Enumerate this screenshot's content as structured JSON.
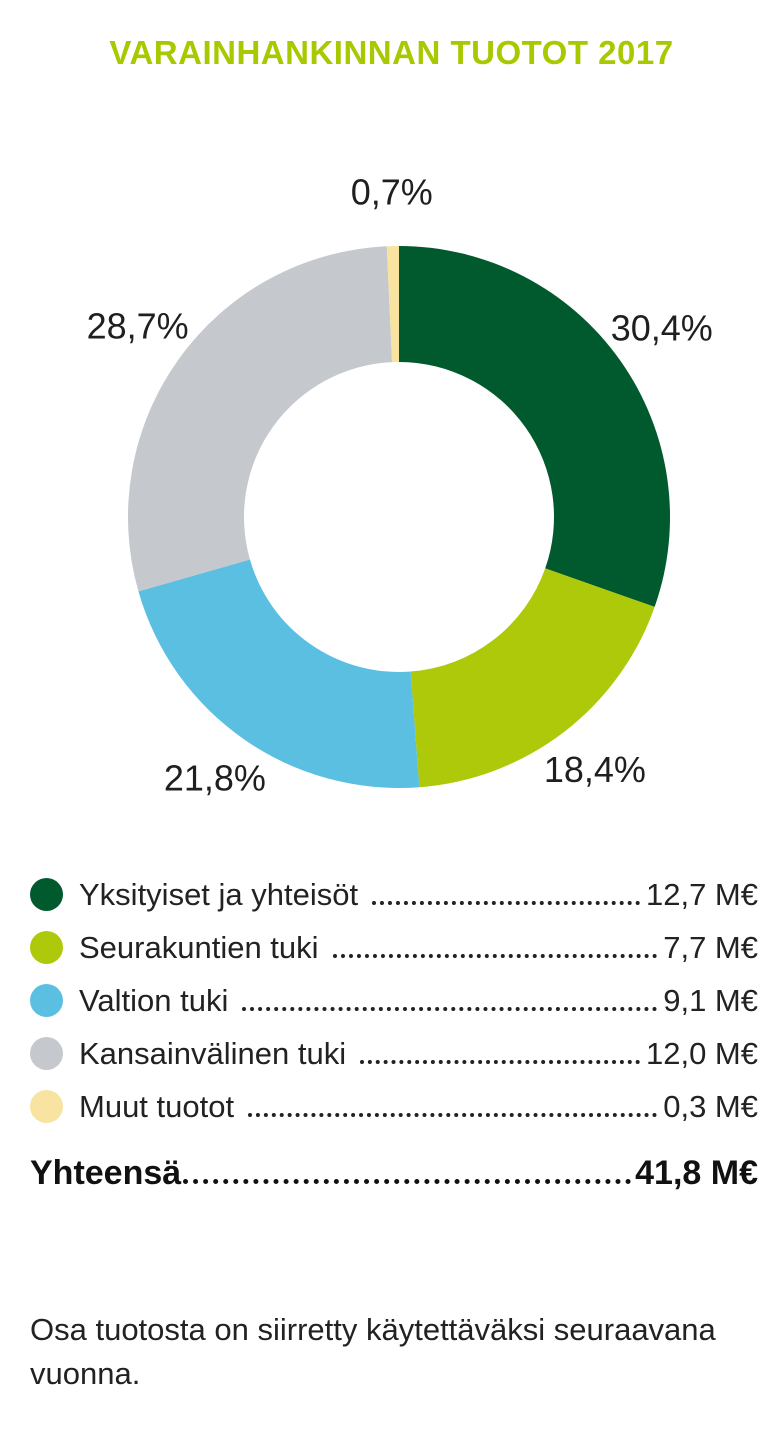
{
  "title": "VARAINHANKINNAN TUOTOT 2017",
  "colors": {
    "title": "#a8c800",
    "series": [
      "#005a2e",
      "#adc909",
      "#5bbfe2",
      "#c5c8cd",
      "#f8e3a1"
    ]
  },
  "chart_data": {
    "type": "pie",
    "donut": true,
    "title": "VARAINHANKINNAN TUOTOT 2017",
    "unit": "M€",
    "categories": [
      "Yksityiset ja yhteisöt",
      "Seurakuntien tuki",
      "Valtion tuki",
      "Kansainvälinen tuki",
      "Muut tuotot"
    ],
    "values": [
      12.7,
      7.7,
      9.1,
      12.0,
      0.3
    ],
    "percent_labels": [
      "30,4%",
      "18,4%",
      "21,8%",
      "28,7%",
      "0,7%"
    ],
    "value_labels": [
      "12,7 M€",
      "7,7 M€",
      "9,1 M€",
      "12,0 M€",
      "0,3 M€"
    ],
    "total_label": "Yhteensä",
    "total_value": "41,8 M€"
  },
  "note": "Osa tuotosta on siirretty käytettäväksi seuraavana vuonna."
}
